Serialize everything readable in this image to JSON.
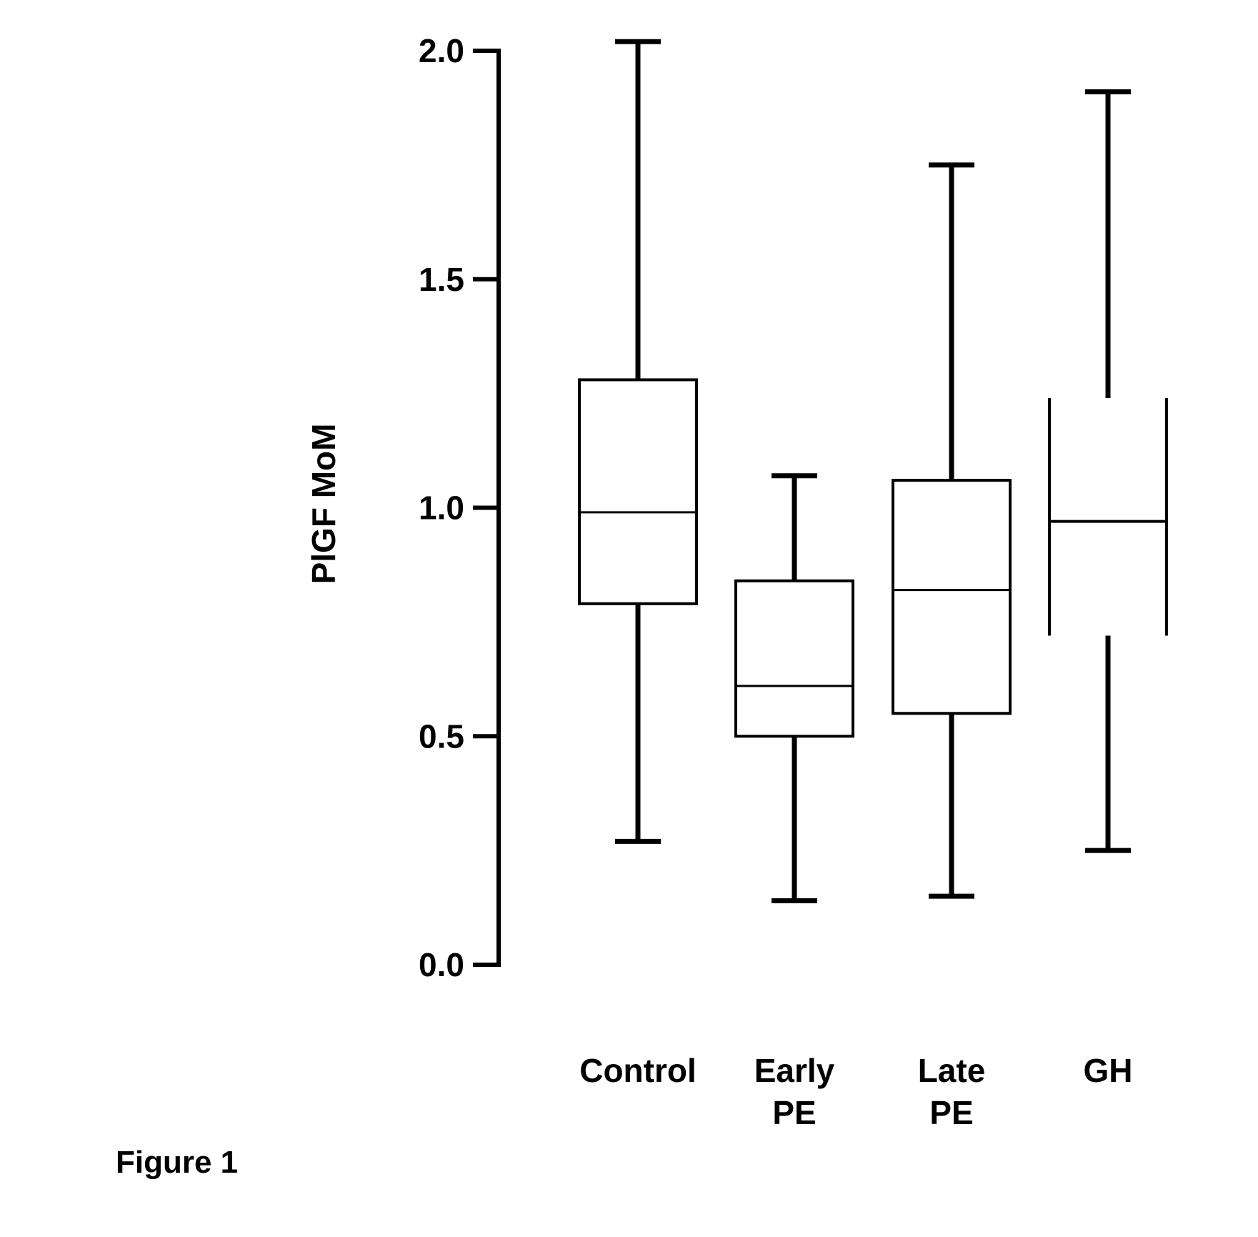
{
  "chart_data": {
    "type": "box",
    "title": "",
    "xlabel": "",
    "ylabel": "PlGF MoM",
    "ylim": [
      0.0,
      2.0
    ],
    "yticks": [
      "0.0",
      "0.5",
      "1.0",
      "1.5",
      "2.0"
    ],
    "categories": [
      {
        "lines": [
          "Control"
        ]
      },
      {
        "lines": [
          "Early",
          "PE"
        ]
      },
      {
        "lines": [
          "Late",
          "PE"
        ]
      },
      {
        "lines": [
          "GH"
        ]
      }
    ],
    "boxes": [
      {
        "whisker_low": 0.27,
        "q1": 0.79,
        "median": 0.99,
        "q3": 1.28,
        "whisker_high": 2.02,
        "style": "box"
      },
      {
        "whisker_low": 0.14,
        "q1": 0.5,
        "median": 0.61,
        "q3": 0.84,
        "whisker_high": 1.07,
        "style": "box"
      },
      {
        "whisker_low": 0.15,
        "q1": 0.55,
        "median": 0.82,
        "q3": 1.06,
        "whisker_high": 1.75,
        "style": "box"
      },
      {
        "whisker_low": 0.25,
        "q1": 0.72,
        "median": 0.97,
        "q3": 1.24,
        "whisker_high": 1.91,
        "style": "open"
      }
    ],
    "grid": false,
    "legend": "none"
  },
  "caption": "Figure 1",
  "colors": {
    "ink": "#000000",
    "background": "#ffffff"
  }
}
